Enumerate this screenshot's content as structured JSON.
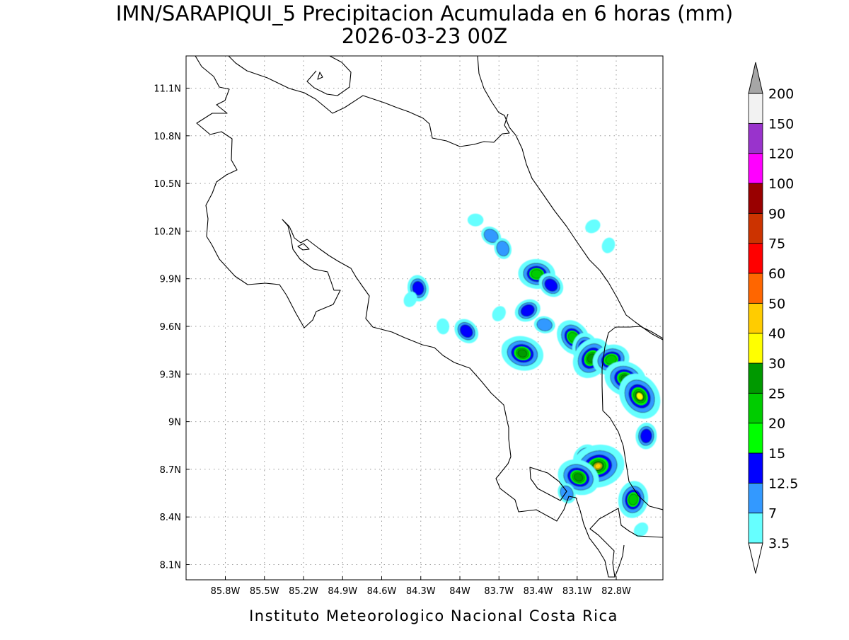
{
  "title": {
    "line1": "IMN/SARAPIQUI_5 Precipitacion Acumulada en 6 horas (mm)",
    "line2": "2026-03-23 00Z"
  },
  "footer": "Instituto Meteorologico Nacional Costa Rica",
  "axes": {
    "x_ticks": [
      "85.8W",
      "85.5W",
      "85.2W",
      "84.9W",
      "84.6W",
      "84.3W",
      "84W",
      "83.7W",
      "83.4W",
      "83.1W",
      "82.8W"
    ],
    "y_ticks": [
      "11.1N",
      "10.8N",
      "10.5N",
      "10.2N",
      "9.9N",
      "9.6N",
      "9.3N",
      "9N",
      "8.7N",
      "8.4N",
      "8.1N"
    ]
  },
  "colorbar": {
    "labels": [
      "3.5",
      "7",
      "12.5",
      "15",
      "20",
      "25",
      "30",
      "40",
      "50",
      "60",
      "75",
      "90",
      "100",
      "120",
      "150",
      "200"
    ],
    "colors": [
      "#66ffff",
      "#3399ff",
      "#0000ff",
      "#00ff00",
      "#00cc00",
      "#009900",
      "#ffff00",
      "#ffcc00",
      "#ff6600",
      "#ff0000",
      "#cc3300",
      "#990000",
      "#ff00ff",
      "#9933cc",
      "#f2f2f2"
    ],
    "under_color": "#ffffff",
    "over_color": "#a6a6a6"
  },
  "chart_data": {
    "type": "heatmap",
    "title": "IMN/SARAPIQUI_5 Precipitacion Acumulada en 6 horas (mm)",
    "subtitle": "2026-03-23 00Z",
    "x_range_lon": [
      -86.0,
      -83.0
    ],
    "y_range_lat": [
      8.0,
      11.3
    ],
    "units": "mm",
    "cells": [
      {
        "lon": -83.88,
        "lat": 10.27,
        "value": 3.5
      },
      {
        "lon": -83.76,
        "lat": 10.17,
        "value": 7
      },
      {
        "lon": -83.67,
        "lat": 10.09,
        "value": 7
      },
      {
        "lon": -82.86,
        "lat": 10.11,
        "value": 3.5
      },
      {
        "lon": -82.98,
        "lat": 10.23,
        "value": 3.5
      },
      {
        "lon": -83.41,
        "lat": 9.93,
        "value": 20
      },
      {
        "lon": -83.3,
        "lat": 9.86,
        "value": 12.5
      },
      {
        "lon": -84.32,
        "lat": 9.84,
        "value": 12.5
      },
      {
        "lon": -84.38,
        "lat": 9.77,
        "value": 3.5
      },
      {
        "lon": -83.48,
        "lat": 9.7,
        "value": 12.5
      },
      {
        "lon": -83.35,
        "lat": 9.61,
        "value": 7
      },
      {
        "lon": -83.95,
        "lat": 9.57,
        "value": 12.5
      },
      {
        "lon": -84.13,
        "lat": 9.6,
        "value": 3.5
      },
      {
        "lon": -83.7,
        "lat": 9.68,
        "value": 3.5
      },
      {
        "lon": -83.6,
        "lat": 9.47,
        "value": 7
      },
      {
        "lon": -83.52,
        "lat": 9.43,
        "value": 25
      },
      {
        "lon": -83.13,
        "lat": 9.53,
        "value": 20
      },
      {
        "lon": -83.04,
        "lat": 9.46,
        "value": 15
      },
      {
        "lon": -82.99,
        "lat": 9.4,
        "value": 25
      },
      {
        "lon": -82.84,
        "lat": 9.39,
        "value": 20
      },
      {
        "lon": -82.73,
        "lat": 9.27,
        "value": 25
      },
      {
        "lon": -82.62,
        "lat": 9.16,
        "value": 30
      },
      {
        "lon": -82.57,
        "lat": 8.91,
        "value": 12.5
      },
      {
        "lon": -83.04,
        "lat": 8.78,
        "value": 12.5
      },
      {
        "lon": -82.94,
        "lat": 8.72,
        "value": 40
      },
      {
        "lon": -83.09,
        "lat": 8.65,
        "value": 25
      },
      {
        "lon": -83.18,
        "lat": 8.55,
        "value": 7
      },
      {
        "lon": -82.67,
        "lat": 8.51,
        "value": 20
      },
      {
        "lon": -82.61,
        "lat": 8.32,
        "value": 3.5
      }
    ]
  }
}
